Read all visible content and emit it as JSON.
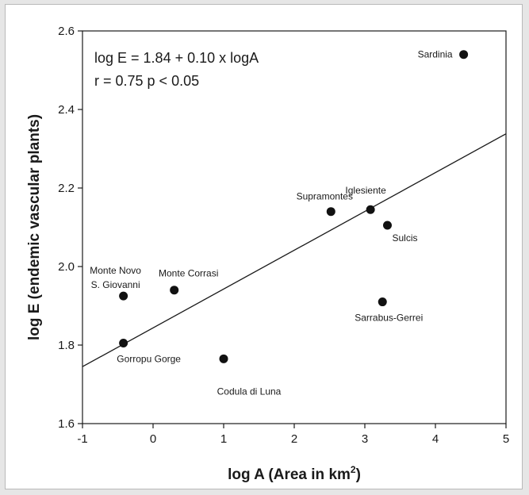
{
  "chart_data": {
    "type": "scatter",
    "xlabel_main": "log A (Area in km",
    "xlabel_sup": "2",
    "xlabel_end": ")",
    "ylabel": "log E (endemic vascular plants)",
    "xlim": [
      -1,
      5
    ],
    "ylim": [
      1.6,
      2.6
    ],
    "x_ticks": [
      -1,
      0,
      1,
      2,
      3,
      4,
      5
    ],
    "y_ticks": [
      1.6,
      1.8,
      2.0,
      2.2,
      2.4,
      2.6
    ],
    "x_tick_labels": [
      "-1",
      "0",
      "1",
      "2",
      "3",
      "4",
      "5"
    ],
    "y_tick_labels": [
      "1.6",
      "1.8",
      "2.0",
      "2.2",
      "2.4",
      "2.6"
    ],
    "regression": {
      "intercept": 1.84,
      "slope": 0.1,
      "equation_text": "log E = 1.84 + 0.10 x logA",
      "stats_text": "r = 0.75   p < 0.05",
      "line": [
        {
          "x": -1,
          "y": 1.745
        },
        {
          "x": 5,
          "y": 2.338
        }
      ]
    },
    "points": [
      {
        "label": "Sardinia",
        "x": 4.4,
        "y": 2.54
      },
      {
        "label": "Supramontes",
        "x": 2.52,
        "y": 2.14
      },
      {
        "label": "Iglesiente",
        "x": 3.08,
        "y": 2.145
      },
      {
        "label": "Sulcis",
        "x": 3.32,
        "y": 2.105
      },
      {
        "label": "Sarrabus-Gerrei",
        "x": 3.25,
        "y": 1.91
      },
      {
        "label": "Monte Novo\nS. Giovanni",
        "x": -0.42,
        "y": 1.925
      },
      {
        "label": "Monte Corrasi",
        "x": 0.3,
        "y": 1.94
      },
      {
        "label": "Gorropu Gorge",
        "x": -0.42,
        "y": 1.805
      },
      {
        "label": "Codula di Luna",
        "x": 1.0,
        "y": 1.765
      }
    ]
  }
}
